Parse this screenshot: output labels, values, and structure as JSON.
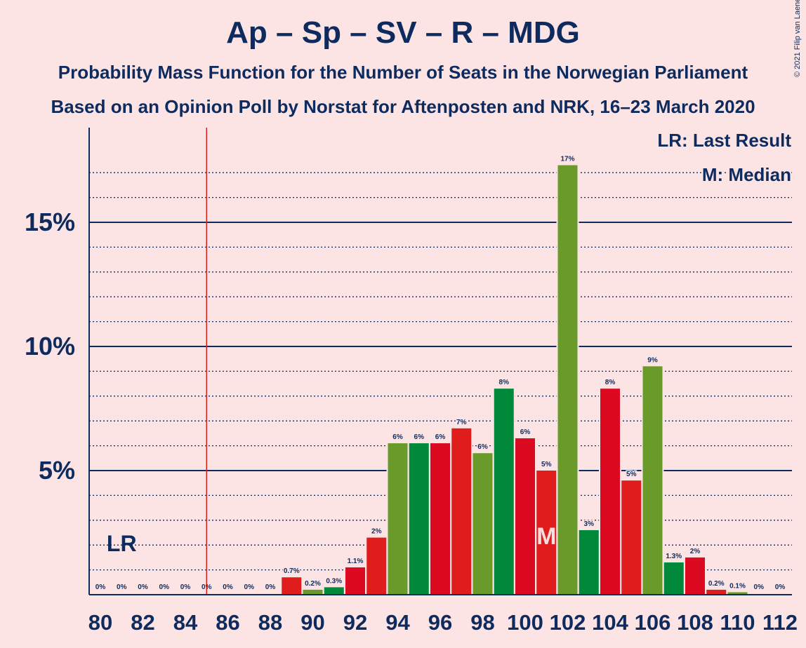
{
  "title": "Ap – Sp – SV – R – MDG",
  "subtitle1": "Probability Mass Function for the Number of Seats in the Norwegian Parliament",
  "subtitle2": "Based on an Opinion Poll by Norstat for Aftenposten and NRK, 16–23 March 2020",
  "copyright": "© 2021 Filip van Laenen",
  "legend": {
    "lr": "LR: Last Result",
    "m": "M: Median"
  },
  "colors": {
    "background": "#fde4e4",
    "axis": "#0d2b5e",
    "last_result_line": "#e01d1d",
    "series": [
      "#e01d1d",
      "#6a9a2a",
      "#00893a",
      "#dc0a21"
    ]
  },
  "chart_data": {
    "type": "bar",
    "x": [
      80,
      81,
      82,
      83,
      84,
      85,
      86,
      87,
      88,
      89,
      90,
      91,
      92,
      93,
      94,
      95,
      96,
      97,
      98,
      99,
      100,
      101,
      102,
      103,
      104,
      105,
      106,
      107,
      108,
      109,
      110,
      111,
      112
    ],
    "values": [
      0,
      0,
      0,
      0,
      0,
      0,
      0,
      0,
      0,
      0.7,
      0.2,
      0.3,
      1.1,
      2.3,
      6.1,
      6.1,
      6.1,
      6.7,
      5.7,
      8.3,
      6.3,
      5.0,
      17.3,
      2.6,
      8.3,
      4.6,
      9.2,
      1.3,
      1.5,
      0.2,
      0.1,
      0,
      0
    ],
    "labels": [
      "0%",
      "0%",
      "0%",
      "0%",
      "0%",
      "0%",
      "0%",
      "0%",
      "0%",
      "0.7%",
      "0.2%",
      "0.3%",
      "1.1%",
      "2%",
      "6%",
      "6%",
      "6%",
      "7%",
      "6%",
      "8%",
      "6%",
      "5%",
      "17%",
      "3%",
      "8%",
      "5%",
      "9%",
      "1.3%",
      "2%",
      "0.2%",
      "0.1%",
      "0%",
      "0%"
    ],
    "x_tick_labels": [
      "80",
      "82",
      "84",
      "86",
      "88",
      "90",
      "92",
      "94",
      "96",
      "98",
      "100",
      "102",
      "104",
      "106",
      "108",
      "110",
      "112"
    ],
    "y_tick_labels": [
      "5%",
      "10%",
      "15%"
    ],
    "y_ticks": [
      5,
      10,
      15
    ],
    "ylim": [
      0,
      18.8
    ],
    "last_result": 85,
    "last_result_label": "LR",
    "median": 101,
    "median_label": "M",
    "grid": "dotted minor lines every 1%, solid major lines every 5%"
  }
}
